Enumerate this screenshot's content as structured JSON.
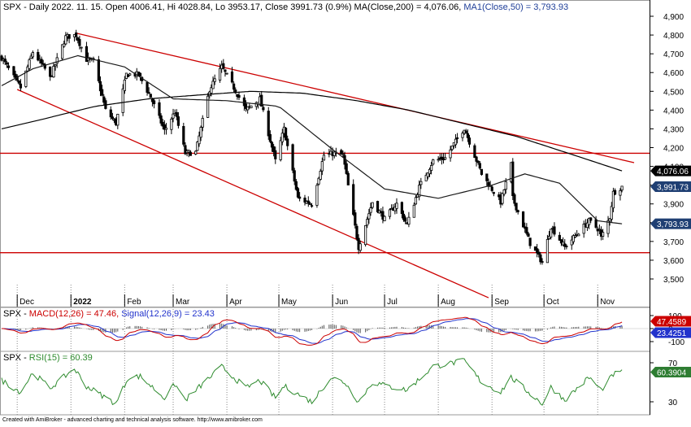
{
  "chart_data": [
    {
      "type": "candlestick",
      "panel": "price",
      "header": {
        "symbol": "SPX - ",
        "info": "Daily 2022. 11. 15. Open 4006.41, Hi 4028.84, Lo 3953.17, Close 3991.73 (0.9%) ",
        "ma200": "MA(Close,200) = 4,076.06, ",
        "ma50": "MA1(Close,50) = 3,793.93"
      },
      "ylim": [
        3400,
        4960
      ],
      "yticks": [
        "4,900",
        "4,800",
        "4,700",
        "4,600",
        "4,500",
        "4,400",
        "4,300",
        "4,200",
        "4,100",
        "4,000",
        "3,900",
        "3,800",
        "3,700",
        "3,600",
        "3,500"
      ],
      "months": [
        {
          "label": "Dec",
          "month": "2021-12"
        },
        {
          "label": "2022",
          "month": "2022-01"
        },
        {
          "label": "Feb",
          "month": "2022-02"
        },
        {
          "label": "Mar",
          "month": "2022-03"
        },
        {
          "label": "Apr",
          "month": "2022-04"
        },
        {
          "label": "May",
          "month": "2022-05"
        },
        {
          "label": "Jun",
          "month": "2022-06"
        },
        {
          "label": "Jul",
          "month": "2022-07"
        },
        {
          "label": "Aug",
          "month": "2022-08"
        },
        {
          "label": "Sep",
          "month": "2022-09"
        },
        {
          "label": "Oct",
          "month": "2022-10"
        },
        {
          "label": "Nov",
          "month": "2022-11"
        }
      ],
      "price_anchors": [
        [
          "2021-11-22",
          4680
        ],
        [
          "2021-11-30",
          4560
        ],
        [
          "2021-12-03",
          4520
        ],
        [
          "2021-12-10",
          4710
        ],
        [
          "2021-12-17",
          4620
        ],
        [
          "2021-12-20",
          4570
        ],
        [
          "2021-12-29",
          4790
        ],
        [
          "2022-01-04",
          4800
        ],
        [
          "2022-01-10",
          4670
        ],
        [
          "2022-01-14",
          4660
        ],
        [
          "2022-01-21",
          4400
        ],
        [
          "2022-01-27",
          4330
        ],
        [
          "2022-02-02",
          4590
        ],
        [
          "2022-02-09",
          4590
        ],
        [
          "2022-02-16",
          4470
        ],
        [
          "2022-02-24",
          4290
        ],
        [
          "2022-03-02",
          4390
        ],
        [
          "2022-03-08",
          4170
        ],
        [
          "2022-03-14",
          4175
        ],
        [
          "2022-03-22",
          4510
        ],
        [
          "2022-03-29",
          4630
        ],
        [
          "2022-04-05",
          4520
        ],
        [
          "2022-04-12",
          4400
        ],
        [
          "2022-04-20",
          4460
        ],
        [
          "2022-04-29",
          4130
        ],
        [
          "2022-05-04",
          4300
        ],
        [
          "2022-05-12",
          3930
        ],
        [
          "2022-05-20",
          3900
        ],
        [
          "2022-05-27",
          4160
        ],
        [
          "2022-06-02",
          4170
        ],
        [
          "2022-06-07",
          4160
        ],
        [
          "2022-06-16",
          3670
        ],
        [
          "2022-06-24",
          3910
        ],
        [
          "2022-07-01",
          3820
        ],
        [
          "2022-07-08",
          3900
        ],
        [
          "2022-07-14",
          3790
        ],
        [
          "2022-07-21",
          3990
        ],
        [
          "2022-07-29",
          4130
        ],
        [
          "2022-08-05",
          4145
        ],
        [
          "2022-08-16",
          4305
        ],
        [
          "2022-08-26",
          4060
        ],
        [
          "2022-09-06",
          3910
        ],
        [
          "2022-09-12",
          4110
        ],
        [
          "2022-09-13",
          3930
        ],
        [
          "2022-09-23",
          3690
        ],
        [
          "2022-09-30",
          3590
        ],
        [
          "2022-10-05",
          3780
        ],
        [
          "2022-10-13",
          3670
        ],
        [
          "2022-10-21",
          3750
        ],
        [
          "2022-10-27",
          3810
        ],
        [
          "2022-11-02",
          3760
        ],
        [
          "2022-11-03",
          3720
        ],
        [
          "2022-11-08",
          3830
        ],
        [
          "2022-11-10",
          3960
        ],
        [
          "2022-11-15",
          3991.73
        ]
      ],
      "ma200_anchors": [
        [
          "2021-11-22",
          4300
        ],
        [
          "2021-12-15",
          4350
        ],
        [
          "2022-01-15",
          4420
        ],
        [
          "2022-02-15",
          4460
        ],
        [
          "2022-03-15",
          4480
        ],
        [
          "2022-04-15",
          4500
        ],
        [
          "2022-05-15",
          4490
        ],
        [
          "2022-06-15",
          4450
        ],
        [
          "2022-07-15",
          4400
        ],
        [
          "2022-08-15",
          4330
        ],
        [
          "2022-09-15",
          4260
        ],
        [
          "2022-10-15",
          4170
        ],
        [
          "2022-11-15",
          4076.06
        ]
      ],
      "ma50_anchors": [
        [
          "2021-11-22",
          4530
        ],
        [
          "2021-12-10",
          4620
        ],
        [
          "2022-01-05",
          4690
        ],
        [
          "2022-02-01",
          4630
        ],
        [
          "2022-03-01",
          4460
        ],
        [
          "2022-04-01",
          4450
        ],
        [
          "2022-05-01",
          4420
        ],
        [
          "2022-06-01",
          4190
        ],
        [
          "2022-07-01",
          3980
        ],
        [
          "2022-08-01",
          3930
        ],
        [
          "2022-09-01",
          4000
        ],
        [
          "2022-09-20",
          4060
        ],
        [
          "2022-10-10",
          4010
        ],
        [
          "2022-11-01",
          3810
        ],
        [
          "2022-11-15",
          3793.93
        ]
      ],
      "trendlines": [
        {
          "name": "upper",
          "from": [
            "2022-01-04",
            4810
          ],
          "to": [
            "2022-11-22",
            4120
          ]
        },
        {
          "name": "lower",
          "from": [
            "2021-12-01",
            4510
          ],
          "to": [
            "2022-08-30",
            3400
          ]
        },
        {
          "name": "h-4170",
          "y": 4170
        },
        {
          "name": "h-3640",
          "y": 3640
        }
      ],
      "badges": [
        {
          "label": "4,076.06",
          "value": 4076.06,
          "color": "#000000"
        },
        {
          "label": "3,991.73",
          "value": 3991.73,
          "color": "#1f3f73"
        },
        {
          "label": "3,793.93",
          "value": 3793.93,
          "color": "#1f3f73"
        }
      ]
    },
    {
      "type": "line",
      "panel": "macd",
      "header": {
        "prefix": "SPX - ",
        "macd": "MACD(12,26) = 47.46, ",
        "signal": "Signal(12,26,9) = 23.43"
      },
      "ylim": [
        -150,
        150
      ],
      "yticks": [
        "100",
        "0",
        "-100"
      ],
      "series": [
        {
          "name": "MACD(12,26)",
          "color": "#cc0000"
        },
        {
          "name": "Signal(12,26,9)",
          "color": "#2233cc"
        }
      ],
      "badges": [
        {
          "label": "47.4589",
          "value": 47.46,
          "color": "#cc0000"
        },
        {
          "label": "23.4251",
          "value": 23.43,
          "color": "#2233cc"
        }
      ]
    },
    {
      "type": "line",
      "panel": "rsi",
      "header": {
        "prefix": "SPX - ",
        "rsi": "RSI(15) = 60.39"
      },
      "ylim": [
        20,
        80
      ],
      "yticks": [
        "70",
        "30"
      ],
      "rsi_anchors": [
        [
          "2021-11-22",
          52
        ],
        [
          "2021-12-03",
          40
        ],
        [
          "2021-12-10",
          60
        ],
        [
          "2021-12-20",
          44
        ],
        [
          "2022-01-03",
          64
        ],
        [
          "2022-01-10",
          46
        ],
        [
          "2022-01-27",
          28
        ],
        [
          "2022-02-03",
          55
        ],
        [
          "2022-02-10",
          56
        ],
        [
          "2022-02-24",
          34
        ],
        [
          "2022-03-02",
          48
        ],
        [
          "2022-03-08",
          32
        ],
        [
          "2022-03-29",
          66
        ],
        [
          "2022-04-12",
          44
        ],
        [
          "2022-04-20",
          52
        ],
        [
          "2022-04-29",
          34
        ],
        [
          "2022-05-04",
          46
        ],
        [
          "2022-05-20",
          30
        ],
        [
          "2022-05-31",
          55
        ],
        [
          "2022-06-08",
          50
        ],
        [
          "2022-06-16",
          30
        ],
        [
          "2022-06-24",
          50
        ],
        [
          "2022-07-05",
          45
        ],
        [
          "2022-07-14",
          42
        ],
        [
          "2022-07-29",
          66
        ],
        [
          "2022-08-16",
          72
        ],
        [
          "2022-08-26",
          50
        ],
        [
          "2022-09-06",
          40
        ],
        [
          "2022-09-12",
          55
        ],
        [
          "2022-09-30",
          28
        ],
        [
          "2022-10-05",
          45
        ],
        [
          "2022-10-13",
          32
        ],
        [
          "2022-10-27",
          55
        ],
        [
          "2022-11-03",
          42
        ],
        [
          "2022-11-10",
          58
        ],
        [
          "2022-11-15",
          60.39
        ]
      ],
      "badges": [
        {
          "label": "60.3904",
          "value": 60.39,
          "color": "#2e7d32"
        }
      ]
    }
  ],
  "footer": {
    "text": "Created with AmiBroker - advanced charting and technical analysis software. http://www.amibroker.com"
  },
  "colors": {
    "candle": "#000000",
    "ma200": "#000000",
    "ma50": "#1a1a1a",
    "trend": "#cc0000",
    "macd": "#cc0000",
    "signal": "#2233cc",
    "hist": "#555555",
    "rsi": "#2e8b2e",
    "month_grid": "#888888",
    "panel_border": "#999999"
  }
}
